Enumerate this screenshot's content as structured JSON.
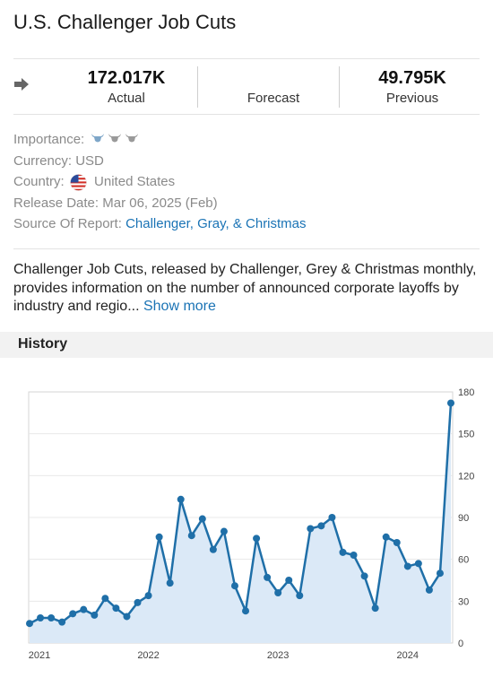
{
  "header": {
    "title": "U.S. Challenger Job Cuts"
  },
  "stats": {
    "trend_icon": "right-arrow-icon",
    "actual": {
      "value": "172.017K",
      "label": "Actual"
    },
    "forecast": {
      "value": "",
      "label": "Forecast"
    },
    "previous": {
      "value": "49.795K",
      "label": "Previous"
    }
  },
  "details": {
    "importance_label": "Importance:",
    "importance_level": 1,
    "importance_max": 3,
    "currency_label": "Currency:",
    "currency_value": "USD",
    "country_label": "Country:",
    "country_value": "United States",
    "release_label": "Release Date:",
    "release_value": "Mar 06, 2025 (Feb)",
    "source_label": "Source Of Report:",
    "source_value": "Challenger, Gray, & Christmas"
  },
  "description": {
    "text": "Challenger Job Cuts, released by Challenger, Grey & Christmas monthly, provides information on the number of announced corporate layoffs by industry and regio...",
    "more_label": "Show more"
  },
  "history": {
    "title": "History"
  },
  "colors": {
    "line": "#1f6fa8",
    "fill": "#dbe9f7",
    "link": "#1a73b5"
  },
  "chart_data": {
    "type": "area",
    "x_tick_labels": [
      "2021",
      "2022",
      "2023",
      "2024"
    ],
    "y_ticks": [
      0,
      30,
      60,
      90,
      120,
      150,
      180
    ],
    "ylim": [
      0,
      180
    ],
    "grid": true,
    "y_axis_side": "right",
    "series": [
      {
        "values": [
          14,
          18,
          18,
          15,
          21,
          24,
          20,
          32,
          25,
          19,
          29,
          34,
          76,
          43,
          103,
          77,
          89,
          67,
          80,
          41,
          23,
          75,
          47,
          36,
          45,
          34,
          82,
          84,
          90,
          65,
          63,
          48,
          25,
          76,
          72,
          55,
          57,
          38,
          50,
          172
        ]
      }
    ]
  }
}
